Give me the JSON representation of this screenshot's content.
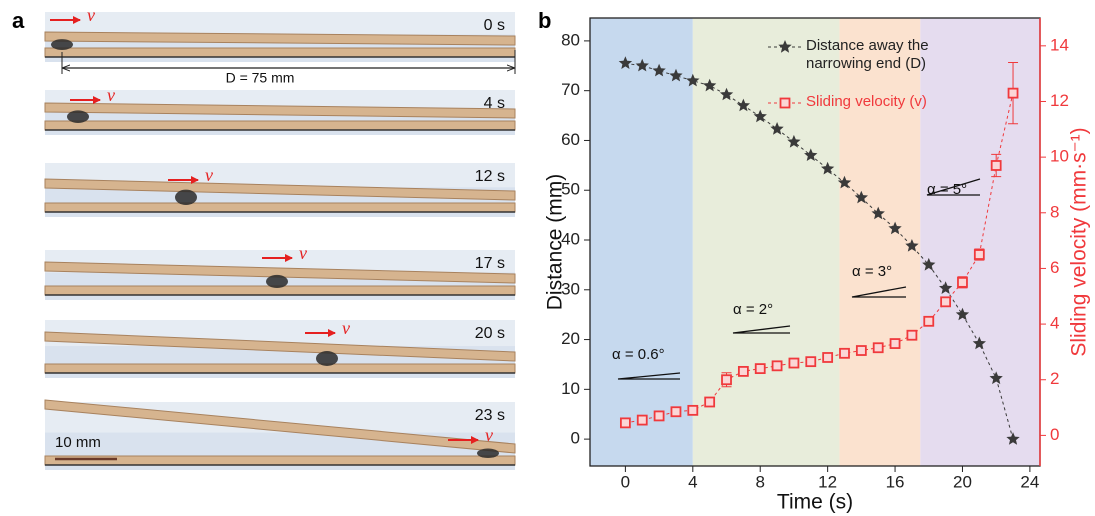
{
  "panel_a": {
    "label": "a",
    "frames": [
      {
        "time": "0 s",
        "velocity_label": "v"
      },
      {
        "time": "4 s",
        "velocity_label": "v"
      },
      {
        "time": "12 s",
        "velocity_label": "v"
      },
      {
        "time": "17 s",
        "velocity_label": "v"
      },
      {
        "time": "20 s",
        "velocity_label": "v"
      },
      {
        "time": "23 s",
        "velocity_label": "v"
      }
    ],
    "dimension_label": "D = 75 mm",
    "scale_bar_label": "10 mm"
  },
  "chart_data": {
    "type": "line",
    "panel_label": "b",
    "x_label": "Time (s)",
    "y_label": "Distance (mm)",
    "y2_label": "Sliding velocity (mm·s⁻¹)",
    "xlim": [
      -2.1,
      24.6
    ],
    "xticks": [
      0,
      4,
      8,
      12,
      16,
      20,
      24
    ],
    "ylim": [
      -5.4,
      84.6
    ],
    "yticks": [
      0,
      10,
      20,
      30,
      40,
      50,
      60,
      70,
      80
    ],
    "y2lim": [
      -1.1,
      15.0
    ],
    "y2ticks": [
      0,
      2,
      4,
      6,
      8,
      10,
      12,
      14
    ],
    "regions": [
      {
        "start": -2.1,
        "end": 4,
        "color": "#c6d9ee",
        "label": "α = 0.6°"
      },
      {
        "start": 4,
        "end": 12.7,
        "color": "#e8eddb",
        "label": "α = 2°"
      },
      {
        "start": 12.7,
        "end": 17.5,
        "color": "#fbe2cf",
        "label": "α = 3°"
      },
      {
        "start": 17.5,
        "end": 24.6,
        "color": "#e5dcef",
        "label": "α = 5°"
      }
    ],
    "x": [
      0,
      1,
      2,
      3,
      4,
      5,
      6,
      7,
      8,
      9,
      10,
      11,
      12,
      13,
      14,
      15,
      16,
      17,
      18,
      19,
      20,
      21,
      22,
      23
    ],
    "series": [
      {
        "name": "Distance away the narrowing end (D)",
        "color": "#3a3a3a",
        "axis": "y",
        "values": [
          75.5,
          75,
          74,
          73,
          72,
          71,
          69.2,
          67,
          64.8,
          62.3,
          59.7,
          57,
          54.3,
          51.5,
          48.5,
          45.3,
          42.3,
          38.8,
          35,
          30.3,
          25,
          19.2,
          12.2,
          0
        ]
      },
      {
        "name": "Sliding velocity (v)",
        "color": "#f0393c",
        "axis": "y2",
        "values": [
          0.45,
          0.55,
          0.7,
          0.85,
          0.9,
          1.2,
          2.0,
          2.3,
          2.4,
          2.5,
          2.6,
          2.65,
          2.8,
          2.95,
          3.05,
          3.15,
          3.3,
          3.6,
          4.1,
          4.8,
          5.5,
          6.5,
          9.7,
          12.3
        ],
        "errors": [
          0.1,
          0.1,
          0.1,
          0.1,
          0.1,
          0.15,
          0.25,
          0.1,
          0.1,
          0.1,
          0.1,
          0.1,
          0.1,
          0.1,
          0.1,
          0.1,
          0.1,
          0.1,
          0.1,
          0.15,
          0.2,
          0.2,
          0.4,
          1.1
        ]
      }
    ]
  }
}
